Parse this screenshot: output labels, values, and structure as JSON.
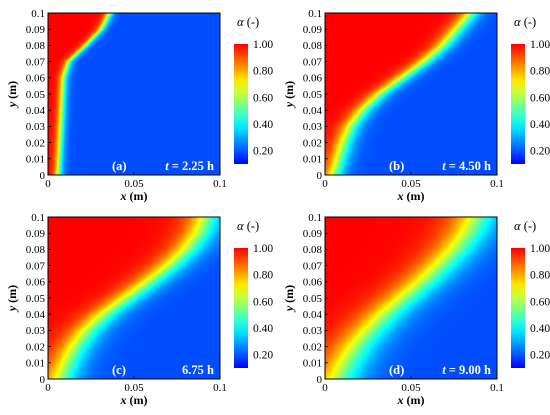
{
  "chart_data": [
    {
      "type": "heatmap",
      "panel_label": "(a)",
      "time_label": "t = 2.25 h",
      "time_value_h": 2.25,
      "xlabel": "x (m)",
      "ylabel": "y (m)",
      "xlim": [
        0,
        0.1
      ],
      "ylim": [
        0,
        0.1
      ],
      "xticks": [
        "0",
        "0.05",
        "0.1"
      ],
      "yticks": [
        "0",
        "0.01",
        "0.02",
        "0.03",
        "0.04",
        "0.05",
        "0.06",
        "0.07",
        "0.08",
        "0.09",
        "0.1"
      ],
      "colorbar_title": "α (-)",
      "colorbar_ticks": [
        "1.00",
        "0.80",
        "0.60",
        "0.40",
        "0.20"
      ],
      "front": {
        "y": [
          0,
          0.02,
          0.04,
          0.06,
          0.07,
          0.08,
          0.09,
          0.1
        ],
        "x": [
          0.006,
          0.007,
          0.008,
          0.009,
          0.012,
          0.022,
          0.031,
          0.036
        ]
      },
      "transition_width": 0.0015
    },
    {
      "type": "heatmap",
      "panel_label": "(b)",
      "time_label": "t = 4.50 h",
      "time_value_h": 4.5,
      "xlabel": "x (m)",
      "ylabel": "y (m)",
      "xlim": [
        0,
        0.1
      ],
      "ylim": [
        0,
        0.1
      ],
      "xticks": [
        "0",
        "0.05",
        "0.1"
      ],
      "yticks": [
        "0",
        "0.01",
        "0.02",
        "0.03",
        "0.04",
        "0.05",
        "0.06",
        "0.07",
        "0.08",
        "0.09",
        "0.1"
      ],
      "colorbar_title": "α (-)",
      "colorbar_ticks": [
        "1.00",
        "0.80",
        "0.60",
        "0.40",
        "0.20"
      ],
      "front": {
        "y": [
          0,
          0.01,
          0.02,
          0.03,
          0.04,
          0.05,
          0.06,
          0.07,
          0.08,
          0.09,
          0.1
        ],
        "x": [
          0.005,
          0.008,
          0.011,
          0.015,
          0.022,
          0.032,
          0.045,
          0.058,
          0.069,
          0.077,
          0.085
        ]
      },
      "transition_width": 0.0035
    },
    {
      "type": "heatmap",
      "panel_label": "(c)",
      "time_label": "6.75 h",
      "time_value_h": 6.75,
      "xlabel": "x (m)",
      "ylabel": "y (m)",
      "xlim": [
        0,
        0.1
      ],
      "ylim": [
        0,
        0.1
      ],
      "xticks": [
        "0",
        "0.05",
        "0.1"
      ],
      "yticks": [
        "0",
        "0.01",
        "0.02",
        "0.03",
        "0.04",
        "0.05",
        "0.06",
        "0.07",
        "0.08",
        "0.09",
        "0.1"
      ],
      "colorbar_title": "α (-)",
      "colorbar_ticks": [
        "1.00",
        "0.80",
        "0.60",
        "0.40",
        "0.20"
      ],
      "front": {
        "y": [
          0,
          0.01,
          0.02,
          0.03,
          0.04,
          0.05,
          0.06,
          0.07,
          0.08,
          0.09,
          0.1
        ],
        "x": [
          0.007,
          0.011,
          0.016,
          0.023,
          0.033,
          0.046,
          0.059,
          0.071,
          0.081,
          0.088,
          0.092
        ]
      },
      "transition_width": 0.006
    },
    {
      "type": "heatmap",
      "panel_label": "(d)",
      "time_label": "t = 9.00 h",
      "time_value_h": 9.0,
      "xlabel": "x (m)",
      "ylabel": "y (m)",
      "xlim": [
        0,
        0.1
      ],
      "ylim": [
        0,
        0.1
      ],
      "xticks": [
        "0",
        "0.05",
        "0.1"
      ],
      "yticks": [
        "0",
        "0.01",
        "0.02",
        "0.03",
        "0.04",
        "0.05",
        "0.06",
        "0.07",
        "0.08",
        "0.09",
        "0.1"
      ],
      "colorbar_title": "α (-)",
      "colorbar_ticks": [
        "1.00",
        "0.80",
        "0.60",
        "0.40",
        "0.20"
      ],
      "front": {
        "y": [
          0,
          0.01,
          0.02,
          0.03,
          0.04,
          0.05,
          0.06,
          0.07,
          0.08,
          0.09,
          0.1
        ],
        "x": [
          0.007,
          0.012,
          0.018,
          0.026,
          0.035,
          0.046,
          0.057,
          0.067,
          0.076,
          0.083,
          0.088
        ]
      },
      "transition_width": 0.008
    }
  ]
}
